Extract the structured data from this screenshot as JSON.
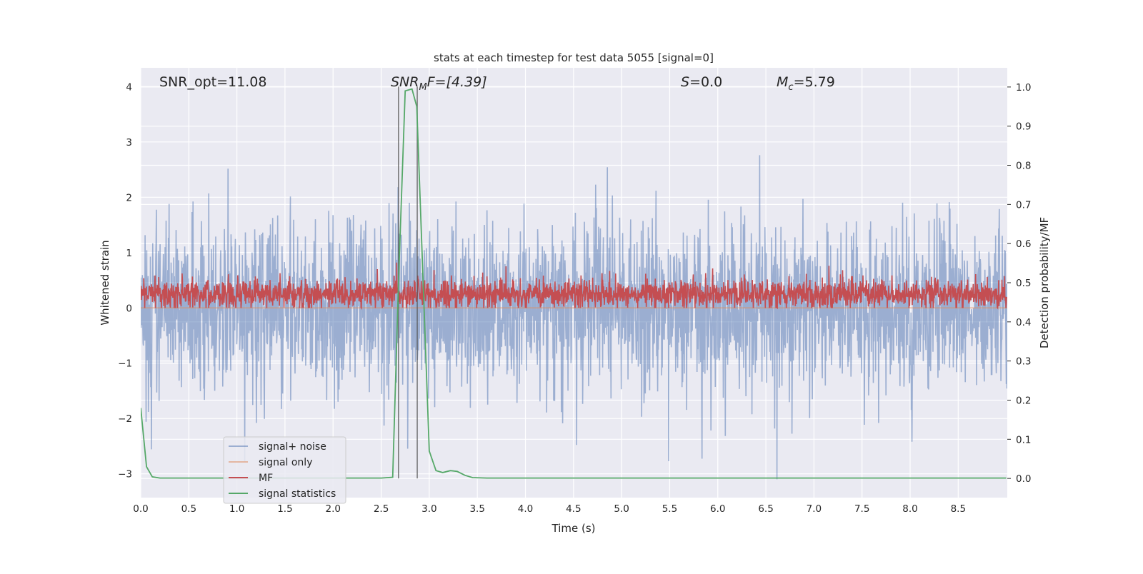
{
  "chart_data": {
    "type": "line",
    "title": "stats at each timestep for test data 5055 [signal=0]",
    "xlabel": "Time (s)",
    "ylabel": "Whitened strain",
    "ylabel_right": "Detection probability/MF",
    "xlim": [
      0,
      9.01
    ],
    "ylim": [
      -3.43,
      4.34
    ],
    "ylim_right": [
      -0.049,
      1.049
    ],
    "grid": true,
    "legend_placement": "lower-left",
    "x_ticks": [
      "0.0",
      "0.5",
      "1.0",
      "1.5",
      "2.0",
      "2.5",
      "3.0",
      "3.5",
      "4.0",
      "4.5",
      "5.0",
      "5.5",
      "6.0",
      "6.5",
      "7.0",
      "7.5",
      "8.0",
      "8.5"
    ],
    "y_ticks": [
      "−3",
      "−2",
      "−1",
      "0",
      "1",
      "2",
      "3",
      "4"
    ],
    "y_ticks_right": [
      "0.0",
      "0.1",
      "0.2",
      "0.3",
      "0.4",
      "0.5",
      "0.6",
      "0.7",
      "0.8",
      "0.9",
      "1.0"
    ],
    "annotations": {
      "snr_opt": "SNR_opt=11.08",
      "snr_mf_prefix": "SNR",
      "snr_mf_sub": "M",
      "snr_mf_suffix": "F=[4.39]",
      "s_label": "S",
      "s_value": "=0.0",
      "mc_label": "M",
      "mc_sub": "c",
      "mc_value": "=5.79"
    },
    "vlines": [
      2.68,
      2.875
    ],
    "series": [
      {
        "name": "signal+ noise",
        "color": "#4c72b0",
        "axis": "left",
        "description_values": "whitened noise, amplitude mostly within ±1.5, spikes up to 4",
        "std": 0.75
      },
      {
        "name": "signal only",
        "color": "#dd8452",
        "axis": "left",
        "constant": 0.0
      },
      {
        "name": "MF",
        "color": "#c44e52",
        "axis": "left",
        "mean": 0.25,
        "range": [
          0.0,
          0.85
        ]
      },
      {
        "name": "signal statistics",
        "color": "#55a868",
        "axis": "right",
        "x": [
          0.0,
          0.06,
          0.12,
          0.2,
          0.5,
          1.0,
          1.5,
          2.0,
          2.5,
          2.62,
          2.68,
          2.75,
          2.82,
          2.87,
          3.0,
          3.07,
          3.14,
          3.22,
          3.29,
          3.37,
          3.45,
          3.6,
          4.0,
          5.0,
          6.0,
          7.0,
          8.0,
          9.0
        ],
        "y": [
          0.18,
          0.03,
          0.004,
          0.001,
          0.001,
          0.001,
          0.001,
          0.001,
          0.001,
          0.003,
          0.5,
          0.99,
          0.995,
          0.95,
          0.07,
          0.02,
          0.015,
          0.02,
          0.018,
          0.008,
          0.002,
          0.001,
          0.001,
          0.001,
          0.001,
          0.001,
          0.001,
          0.001
        ]
      }
    ]
  }
}
